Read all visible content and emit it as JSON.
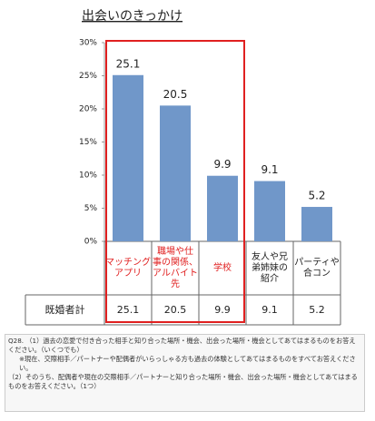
{
  "chart_data": {
    "type": "bar",
    "title": "出会いのきっかけ",
    "categories": [
      "マッチング\nアプリ",
      "職場や仕\n事の関係、\nアルバイト\n先",
      "学校",
      "友人や兄\n弟姉妹の\n紹介",
      "パーティや\n合コン"
    ],
    "values": [
      25.1,
      20.5,
      9.9,
      9.1,
      5.2
    ],
    "color": "#7097c9",
    "ylim": [
      0,
      30
    ],
    "yticks": [
      {
        "value": 0,
        "label": "0%"
      },
      {
        "value": 5,
        "label": "5%"
      },
      {
        "value": 10,
        "label": "10%"
      },
      {
        "value": 15,
        "label": "15%"
      },
      {
        "value": 20,
        "label": "20%"
      },
      {
        "value": 25,
        "label": "25%"
      },
      {
        "value": 30,
        "label": "30%"
      }
    ],
    "grid": false,
    "table_row_label": "既婚者計",
    "highlight": {
      "categories": [
        0,
        1,
        2
      ],
      "color": "#e02020"
    }
  },
  "footnote": [
    "Q28. （1）過去の恋愛で付き合った相手と知り合った場所・機会、出会った場所・機会としてあてはまるものをお答えください。（いくつでも）",
    "※現在、交際相手／パートナーや配偶者がいらっしゃる方も過去の体験としてあてはまるものをすべてお答えください。",
    "（2）そのうち、配偶者や現在の交際相手／パートナーと知り合った場所・機会、出会った場所・機会としてあてはまるものをお答えください。（1つ）"
  ]
}
